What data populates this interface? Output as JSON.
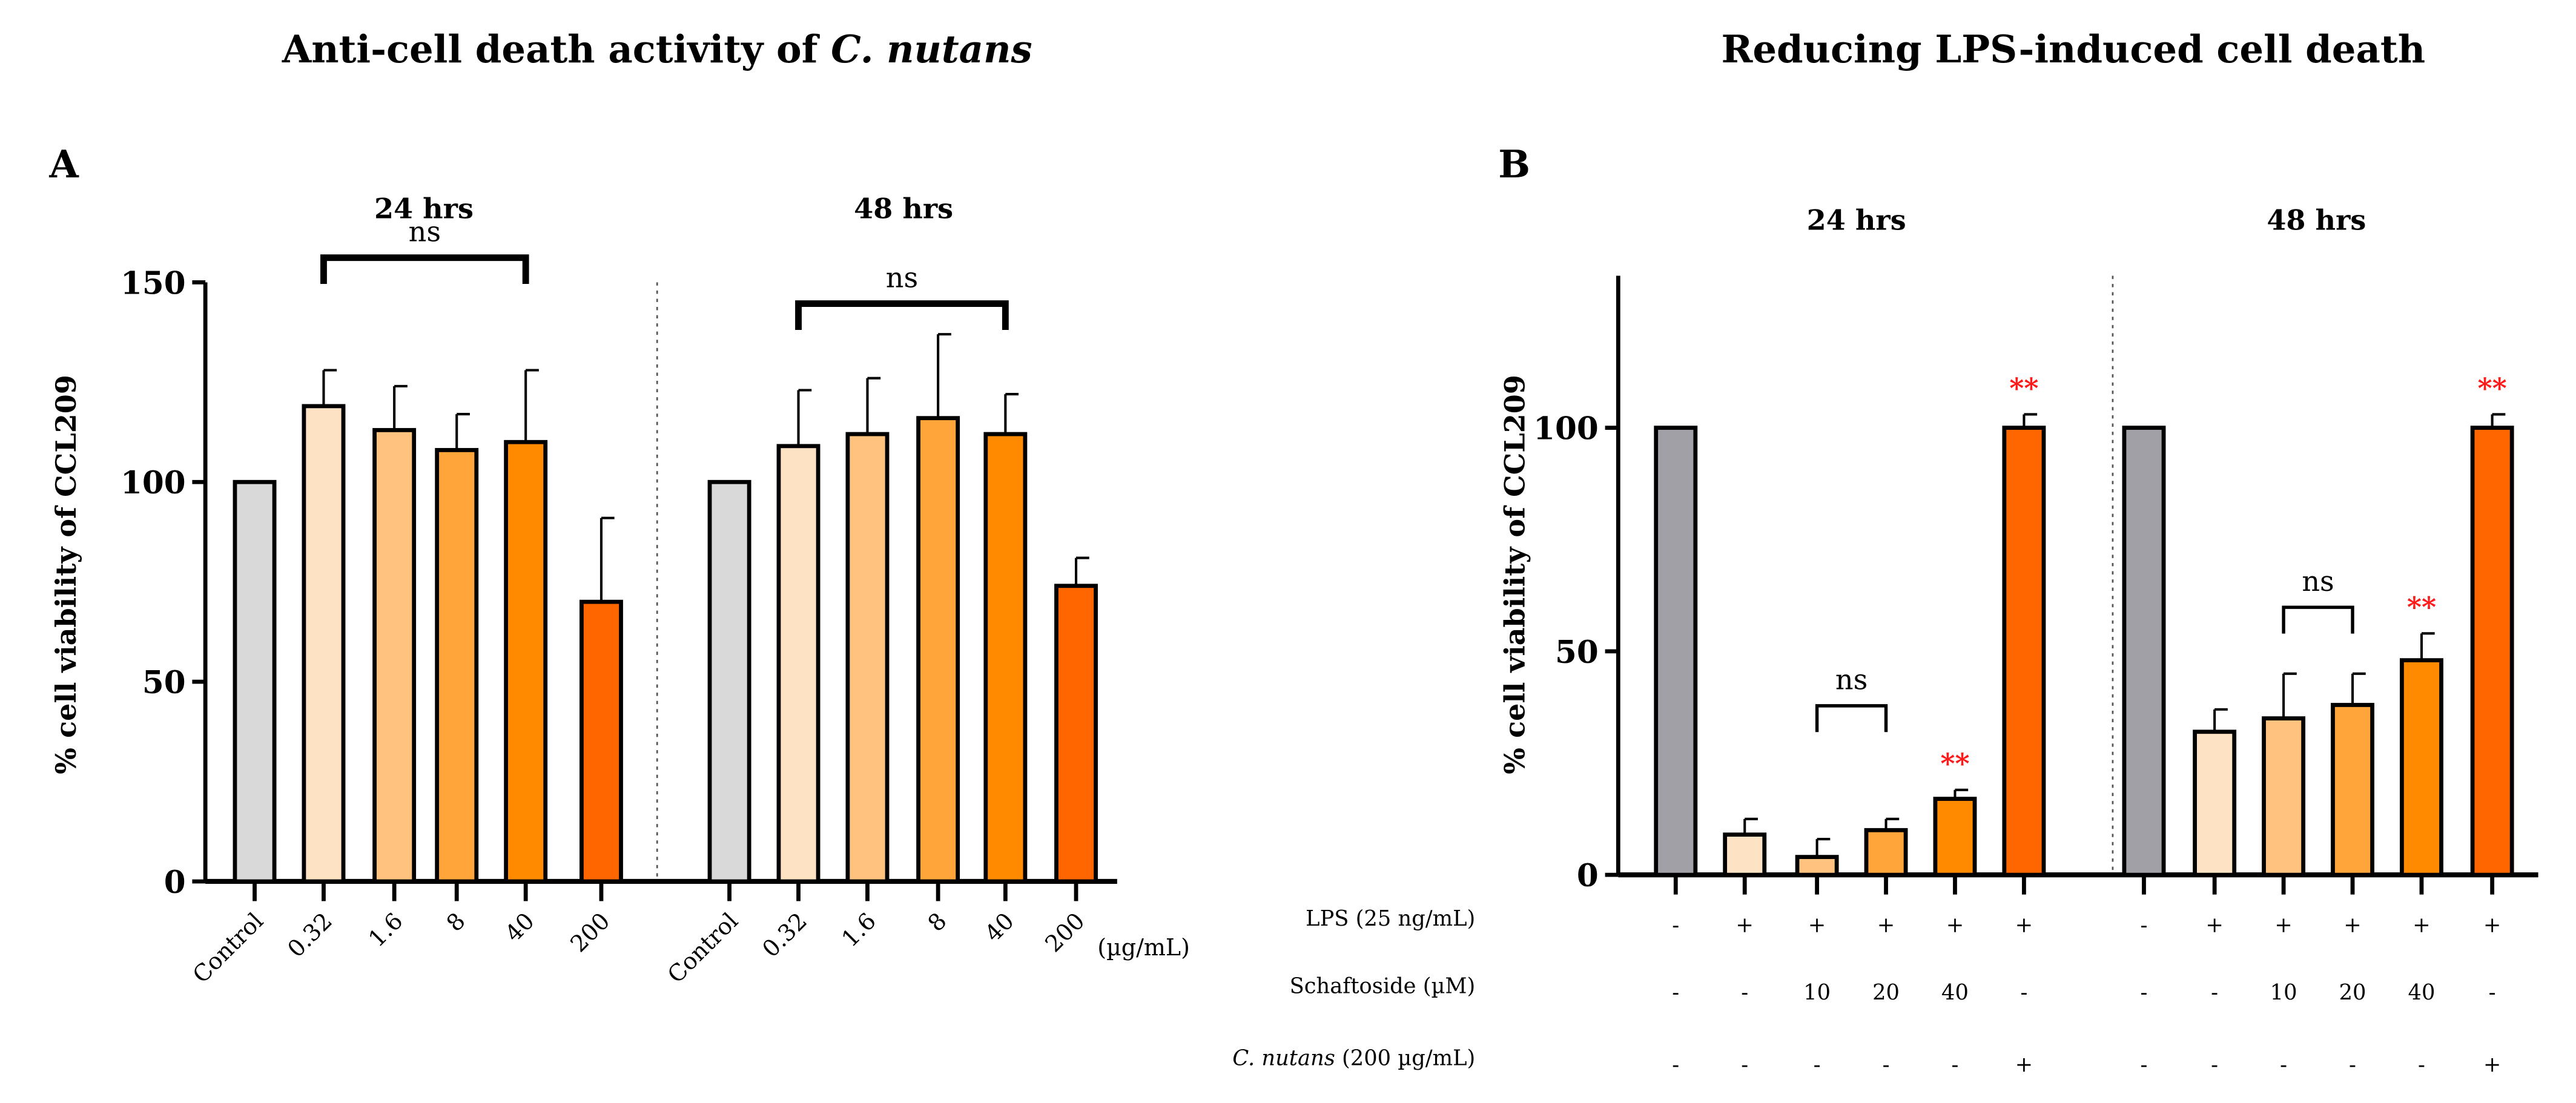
{
  "chart_data": [
    {
      "type": "bar",
      "panel": "A",
      "title_prefix": "Anti-cell death activity of ",
      "title_italic": "C. nutans",
      "ylabel": "% cell viability of CCL209",
      "ylim": [
        0,
        150
      ],
      "yticks": [
        0,
        50,
        100,
        150
      ],
      "unit_label": "(µg/mL)",
      "categories": [
        "Control",
        "0.32",
        "1.6",
        "8",
        "40",
        "200"
      ],
      "colors": [
        "#d9d9d9",
        "#fde3c4",
        "#ffc27f",
        "#ffa53a",
        "#ff8a00",
        "#ff6600"
      ],
      "groups": [
        {
          "name": "24 hrs",
          "values": [
            100,
            119,
            113,
            108,
            110,
            70
          ],
          "error_top": [
            null,
            128,
            124,
            117,
            128,
            91
          ],
          "ns": {
            "from": 1,
            "to": 4,
            "label": "ns"
          }
        },
        {
          "name": "48 hrs",
          "values": [
            100,
            109,
            112,
            116,
            112,
            74
          ],
          "error_top": [
            null,
            123,
            126,
            137,
            122,
            81
          ],
          "ns": {
            "from": 1,
            "to": 4,
            "label": "ns"
          }
        }
      ]
    },
    {
      "type": "bar",
      "panel": "B",
      "title": "Reducing LPS-induced cell death",
      "ylabel": "% cell viability of CCL209",
      "ylim": [
        0,
        134
      ],
      "yticks": [
        0,
        50,
        100
      ],
      "colors": [
        "#a1a0a6",
        "#fde3c4",
        "#ffc27f",
        "#ffa53a",
        "#ff8a00",
        "#ff6600"
      ],
      "groups": [
        {
          "name": "24 hrs",
          "values": [
            100,
            9,
            4,
            10,
            17,
            100
          ],
          "error_top": [
            null,
            12.5,
            8,
            12.5,
            19,
            103
          ],
          "stars": [
            null,
            null,
            null,
            null,
            "**",
            "**"
          ],
          "ns": {
            "from": 2,
            "to": 3,
            "label": "ns"
          }
        },
        {
          "name": "48 hrs",
          "values": [
            100,
            32,
            35,
            38,
            48,
            100
          ],
          "error_top": [
            null,
            37,
            45,
            45,
            54,
            103
          ],
          "stars": [
            null,
            null,
            null,
            null,
            "**",
            "**"
          ],
          "ns": {
            "from": 2,
            "to": 3,
            "label": "ns"
          }
        }
      ],
      "treatment_rows": [
        {
          "label": "LPS (25 ng/mL)",
          "values": [
            "-",
            "+",
            "+",
            "+",
            "+",
            "+"
          ]
        },
        {
          "label": "Schaftoside (µM)",
          "values": [
            "-",
            "-",
            "10",
            "20",
            "40",
            "-"
          ]
        },
        {
          "label_italic": "C. nutans",
          "label": " (200 µg/mL)",
          "values": [
            "-",
            "-",
            "-",
            "-",
            "-",
            "+"
          ]
        }
      ]
    }
  ]
}
